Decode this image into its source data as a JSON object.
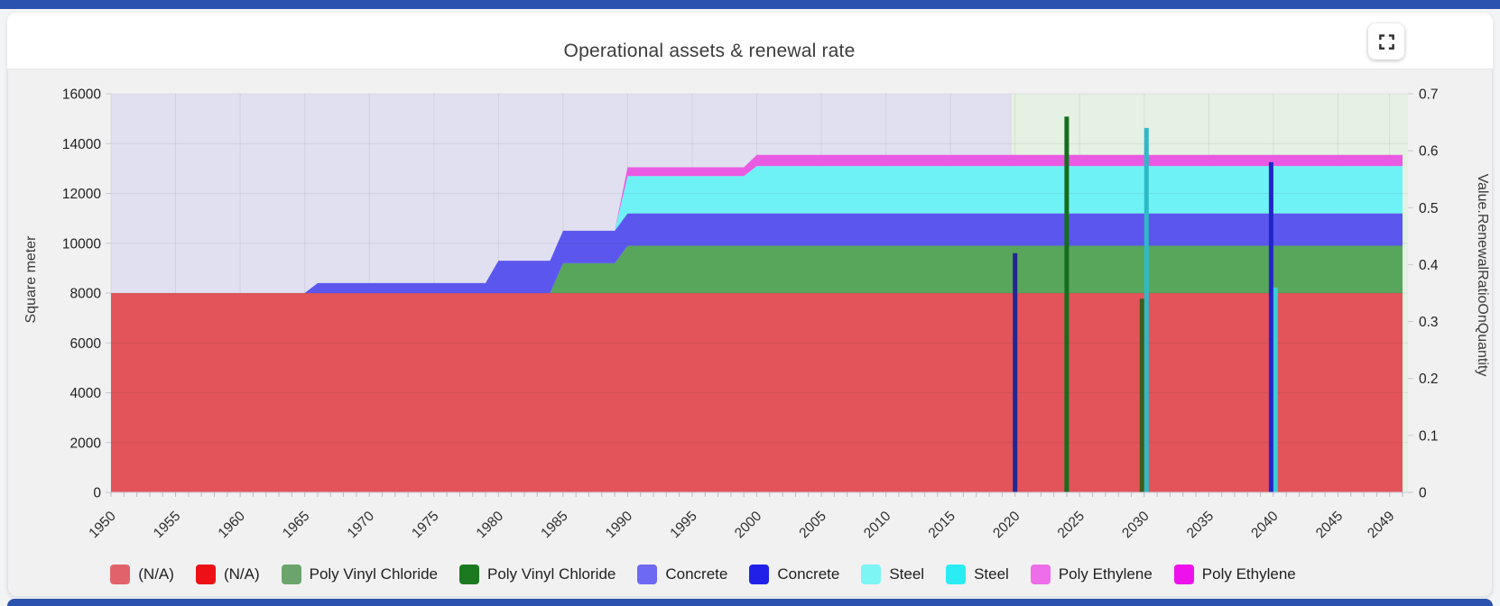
{
  "chrome": {
    "accent_bar_color": "#2b52ae"
  },
  "controls": {
    "fullscreen_icon": "expand-corners"
  },
  "chart_data": {
    "type": "area",
    "title": "Operational assets & renewal rate",
    "x": {
      "min": 1950,
      "max": 2049,
      "label_step": 5,
      "last_label": 2049
    },
    "y_left": {
      "title": "Square meter",
      "min": 0,
      "max": 16000,
      "step": 2000
    },
    "y_right": {
      "title": "Value.RenewalRatioOnQuantity",
      "min": 0,
      "max": 0.7,
      "step": 0.1
    },
    "background": {
      "history_color": "#e1e0f0",
      "forecast_color": "#e5f1e3",
      "forecast_start": 2020
    },
    "area_series": [
      {
        "name": "(N/A)",
        "color": "#e25459",
        "steps": [
          [
            1950,
            8000
          ]
        ]
      },
      {
        "name": "Poly Vinyl Chloride",
        "color": "#58a55c",
        "steps": [
          [
            1950,
            0
          ],
          [
            1985,
            1200
          ],
          [
            1990,
            1900
          ]
        ]
      },
      {
        "name": "Concrete",
        "color": "#5b57ee",
        "steps": [
          [
            1950,
            0
          ],
          [
            1966,
            400
          ],
          [
            1980,
            1300
          ]
        ]
      },
      {
        "name": "Steel",
        "color": "#6ff2f6",
        "steps": [
          [
            1950,
            0
          ],
          [
            1990,
            1500
          ],
          [
            2000,
            1900
          ]
        ]
      },
      {
        "name": "Poly Ethylene",
        "color": "#e95ae3",
        "steps": [
          [
            1950,
            0
          ],
          [
            1990,
            350
          ],
          [
            2000,
            450
          ]
        ]
      }
    ],
    "bars": [
      {
        "year": 2020,
        "series": "Concrete",
        "value": 0.42,
        "color": "#23268f"
      },
      {
        "year": 2024,
        "series": "Poly Vinyl Chloride",
        "value": 0.66,
        "color": "#156d1d"
      },
      {
        "year": 2030,
        "series": "Poly Vinyl Chloride",
        "value": 0.34,
        "color": "#3f5c1d"
      },
      {
        "year": 2030,
        "series": "Steel",
        "value": 0.64,
        "color": "#2fb9c6"
      },
      {
        "year": 2040,
        "series": "Concrete",
        "value": 0.58,
        "color": "#2126c8"
      },
      {
        "year": 2040,
        "series": "Steel",
        "value": 0.36,
        "color": "#38ccd6"
      }
    ],
    "legend": [
      {
        "label": "(N/A)",
        "color": "#e2626b"
      },
      {
        "label": "(N/A)",
        "color": "#ed1117"
      },
      {
        "label": "Poly Vinyl Chloride",
        "color": "#6ba56d"
      },
      {
        "label": "Poly Vinyl Chloride",
        "color": "#1b7a1f"
      },
      {
        "label": "Concrete",
        "color": "#6d69f3"
      },
      {
        "label": "Concrete",
        "color": "#2020e8"
      },
      {
        "label": "Steel",
        "color": "#7ef5f5"
      },
      {
        "label": "Steel",
        "color": "#2aecf2"
      },
      {
        "label": "Poly Ethylene",
        "color": "#ee6de9"
      },
      {
        "label": "Poly Ethylene",
        "color": "#ee11ee"
      }
    ]
  }
}
